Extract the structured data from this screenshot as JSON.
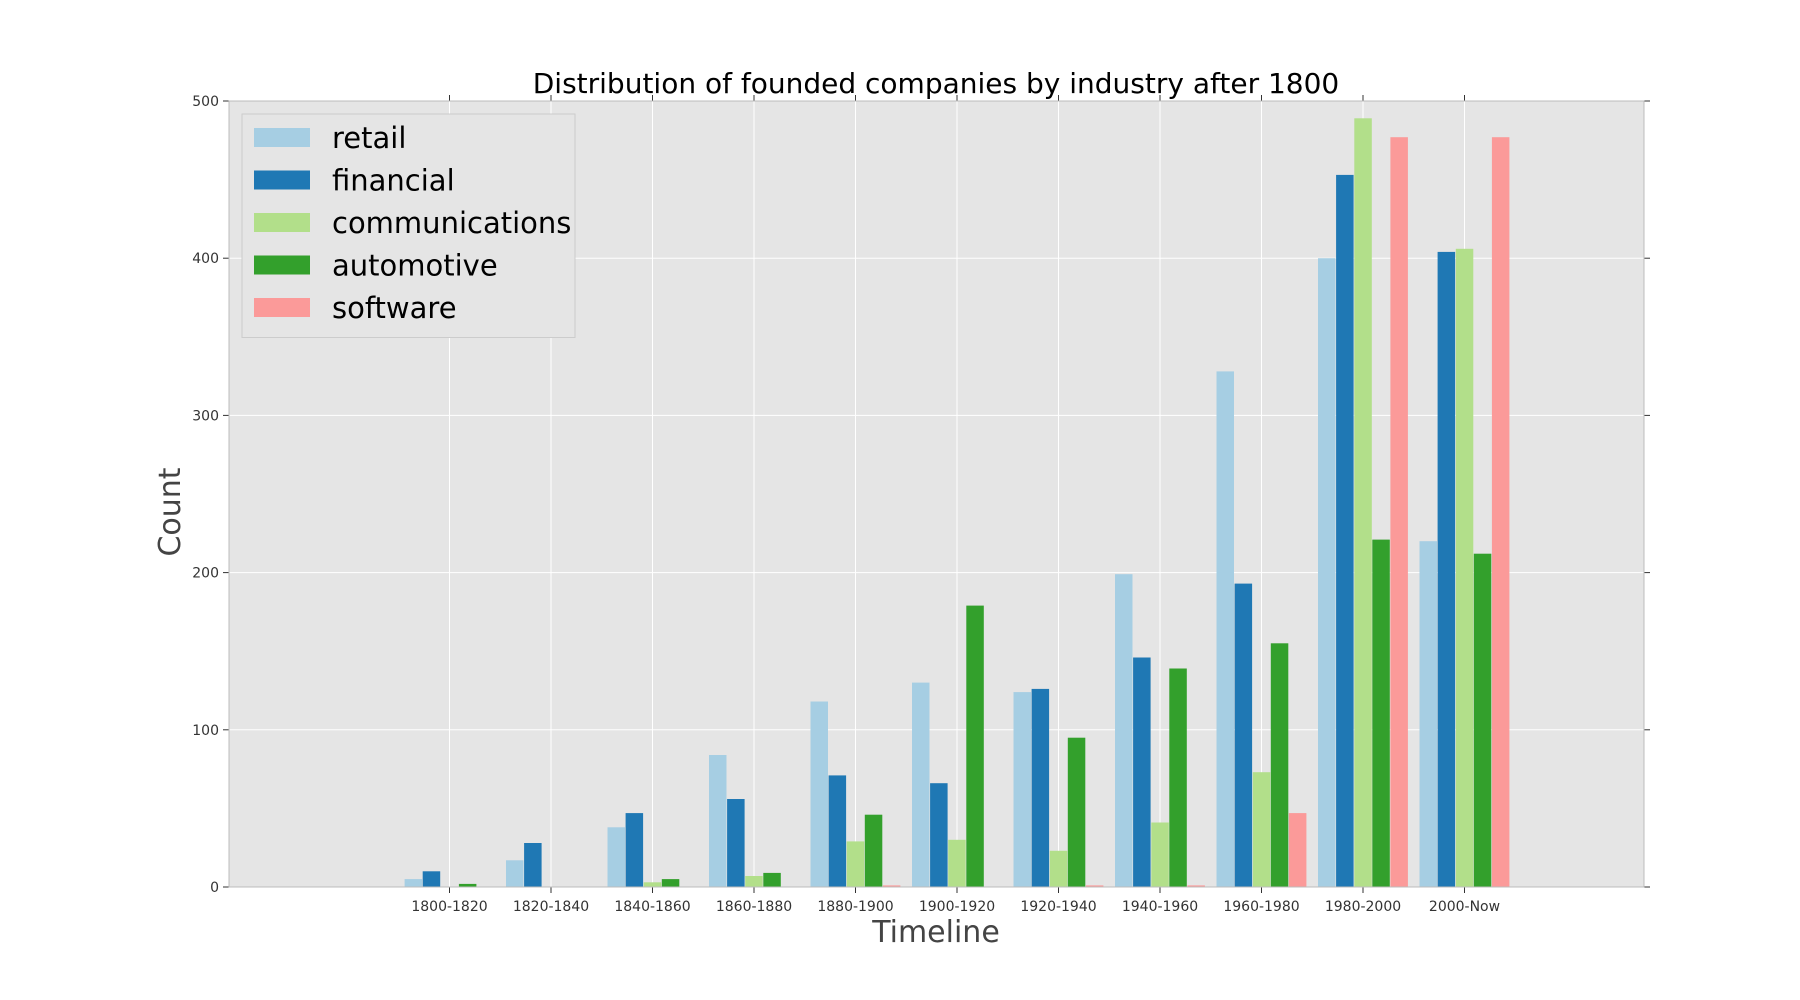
{
  "chart_data": {
    "type": "bar",
    "title": "Distribution of founded companies by industry after 1800",
    "xlabel": "Timeline",
    "ylabel": "Count",
    "ylim": [
      0,
      500
    ],
    "yticks": [
      0,
      100,
      200,
      300,
      400,
      500
    ],
    "grid": true,
    "legend_position": "top-left",
    "categories": [
      "1800-1820",
      "1820-1840",
      "1840-1860",
      "1860-1880",
      "1880-1900",
      "1900-1920",
      "1920-1940",
      "1940-1960",
      "1960-1980",
      "1980-2000",
      "2000-Now"
    ],
    "series": [
      {
        "name": "retail",
        "color": "#a6cee3",
        "values": [
          5,
          17,
          38,
          84,
          118,
          130,
          124,
          199,
          328,
          400,
          220
        ]
      },
      {
        "name": "financial",
        "color": "#1f78b4",
        "values": [
          10,
          28,
          47,
          56,
          71,
          66,
          126,
          146,
          193,
          453,
          404
        ]
      },
      {
        "name": "communications",
        "color": "#b2df8a",
        "values": [
          0,
          0,
          3,
          7,
          29,
          30,
          23,
          41,
          73,
          489,
          406
        ]
      },
      {
        "name": "automotive",
        "color": "#33a02c",
        "values": [
          2,
          0,
          5,
          9,
          46,
          179,
          95,
          139,
          155,
          221,
          212
        ]
      },
      {
        "name": "software",
        "color": "#fb9a99",
        "values": [
          0,
          0,
          0,
          0,
          1,
          0,
          1,
          1,
          47,
          477,
          477
        ]
      }
    ],
    "colors": {
      "plot_background": "#e5e5e5",
      "grid": "#ffffff"
    }
  }
}
